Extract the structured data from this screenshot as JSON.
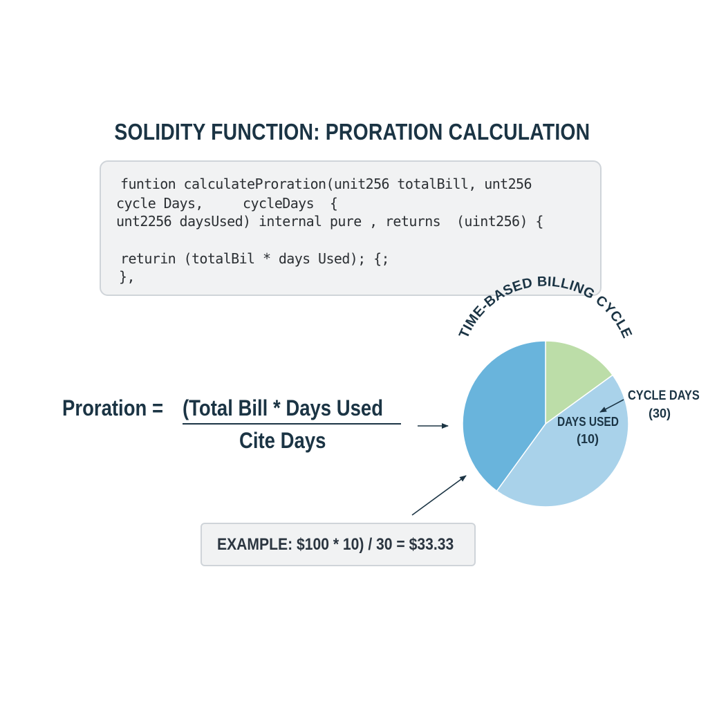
{
  "title": "SOLIDITY FUNCTION: PRORATION CALCULATION",
  "code": {
    "lines": [
      "funtion calculateProration(unit256 totalBill, unt256",
      "cycle Days,     cycleDays  {",
      "unt2256 daysUsed) internal pure , returns  (uint256) {",
      "returin (totalBil * days Used); {;",
      "},"
    ]
  },
  "formula": {
    "lhs": "Proration =",
    "numerator": "(Total Bill * Days Used",
    "denominator": "Cite Days"
  },
  "example": {
    "text": "EXAMPLE: $100 * 10) / 30 = $33.33"
  },
  "chart_data": {
    "type": "pie",
    "title": "TIME-BASED BILLING CYCLE",
    "slices": [
      {
        "label": "",
        "value": 15,
        "color": "#bcdda8"
      },
      {
        "label": "",
        "value": 45,
        "color": "#a9d2ea"
      },
      {
        "label": "",
        "value": 40,
        "color": "#69b4dc"
      }
    ],
    "annotations": {
      "cycle_days_label": "CYCLE DAYS",
      "cycle_days_value": "(30)",
      "days_used_label": "DAYS USED",
      "days_used_value": "(10)"
    }
  },
  "colors": {
    "heading": "#1b3444",
    "code_bg": "#f1f2f3",
    "code_border": "#cfd4d9",
    "pie_green": "#bcdda8",
    "pie_light_blue": "#a9d2ea",
    "pie_blue": "#69b4dc"
  }
}
